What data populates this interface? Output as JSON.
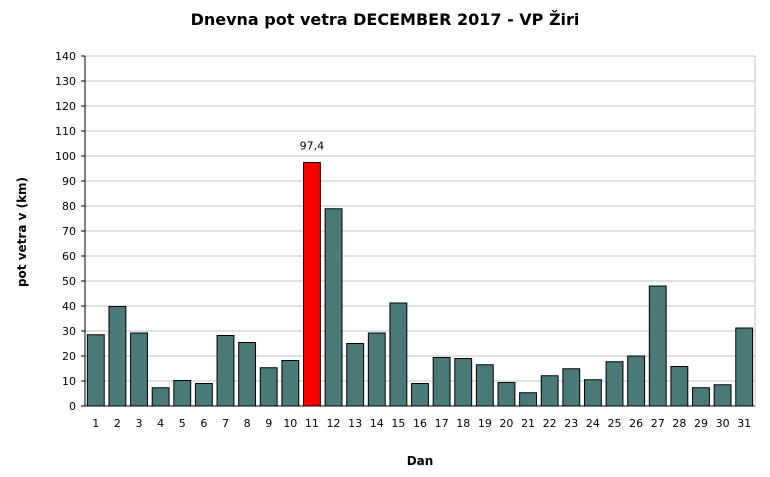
{
  "chart_data": {
    "type": "bar",
    "title": "Dnevna pot vetra DECEMBER 2017 - VP Žiri",
    "xlabel": "Dan",
    "ylabel": "pot vetra  v (km)",
    "ylim": [
      0,
      140
    ],
    "ytick_step": 10,
    "grid": true,
    "legend": "none",
    "categories": [
      "1",
      "2",
      "3",
      "4",
      "5",
      "6",
      "7",
      "8",
      "9",
      "10",
      "11",
      "12",
      "13",
      "14",
      "15",
      "16",
      "17",
      "18",
      "19",
      "20",
      "21",
      "22",
      "23",
      "24",
      "25",
      "26",
      "27",
      "28",
      "29",
      "30",
      "31"
    ],
    "values": [
      28.5,
      39.8,
      29.2,
      7.3,
      10.2,
      9.0,
      28.2,
      25.4,
      15.3,
      18.2,
      97.4,
      78.9,
      25.0,
      29.2,
      41.2,
      9.0,
      19.4,
      19.0,
      16.5,
      9.4,
      5.3,
      12.1,
      14.9,
      10.5,
      17.7,
      20.0,
      48.0,
      15.8,
      7.3,
      8.5,
      31.2
    ],
    "bar_color": "#4a7a78",
    "highlight": {
      "index": 10,
      "color": "#ff0000",
      "label": "97,4"
    },
    "bar_outline": "#000000",
    "grid_color": "#c0c0c0"
  }
}
